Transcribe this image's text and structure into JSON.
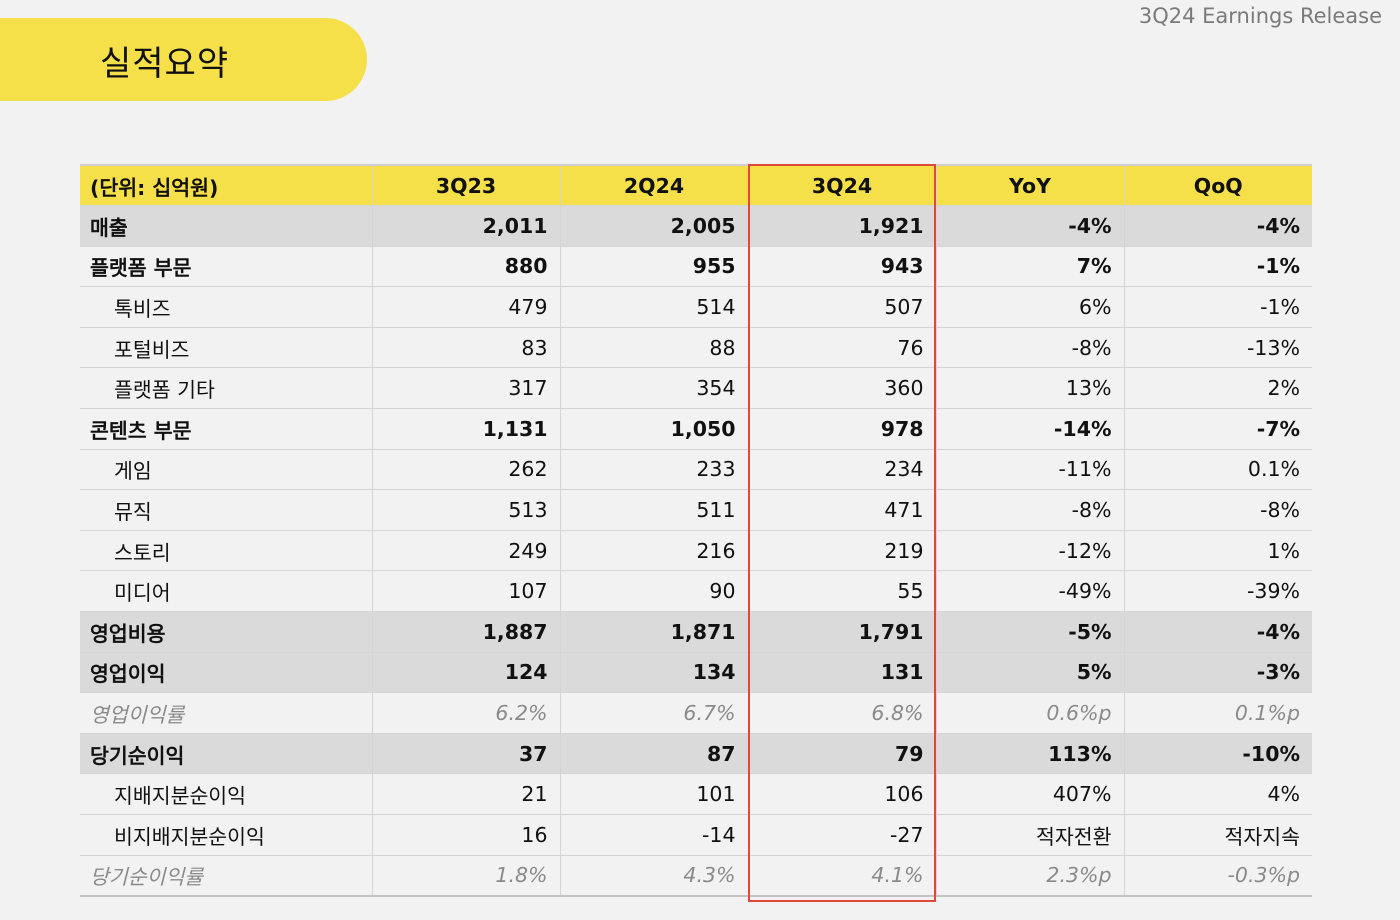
{
  "header": {
    "title": "실적요약",
    "release": "3Q24 Earnings Release",
    "accent_color": "#f5e04a",
    "highlight_color": "#e0493a"
  },
  "table": {
    "columns": [
      "(단위: 십억원)",
      "3Q23",
      "2Q24",
      "3Q24",
      "YoY",
      "QoQ"
    ],
    "highlighted_column": "3Q24",
    "rows": [
      {
        "label": "매출",
        "style": "bold shade",
        "values": [
          "2,011",
          "2,005",
          "1,921",
          "-4%",
          "-4%"
        ]
      },
      {
        "label": "플랫폼 부문",
        "style": "bold",
        "values": [
          "880",
          "955",
          "943",
          "7%",
          "-1%"
        ]
      },
      {
        "label": "톡비즈",
        "style": "sub",
        "values": [
          "479",
          "514",
          "507",
          "6%",
          "-1%"
        ]
      },
      {
        "label": "포털비즈",
        "style": "sub",
        "values": [
          "83",
          "88",
          "76",
          "-8%",
          "-13%"
        ]
      },
      {
        "label": "플랫폼 기타",
        "style": "sub",
        "values": [
          "317",
          "354",
          "360",
          "13%",
          "2%"
        ]
      },
      {
        "label": "콘텐츠 부문",
        "style": "bold",
        "values": [
          "1,131",
          "1,050",
          "978",
          "-14%",
          "-7%"
        ]
      },
      {
        "label": "게임",
        "style": "sub",
        "values": [
          "262",
          "233",
          "234",
          "-11%",
          "0.1%"
        ]
      },
      {
        "label": "뮤직",
        "style": "sub",
        "values": [
          "513",
          "511",
          "471",
          "-8%",
          "-8%"
        ]
      },
      {
        "label": "스토리",
        "style": "sub",
        "values": [
          "249",
          "216",
          "219",
          "-12%",
          "1%"
        ]
      },
      {
        "label": "미디어",
        "style": "sub",
        "values": [
          "107",
          "90",
          "55",
          "-49%",
          "-39%"
        ]
      },
      {
        "label": "영업비용",
        "style": "bold shade",
        "values": [
          "1,887",
          "1,871",
          "1,791",
          "-5%",
          "-4%"
        ]
      },
      {
        "label": "영업이익",
        "style": "bold shade",
        "values": [
          "124",
          "134",
          "131",
          "5%",
          "-3%"
        ]
      },
      {
        "label": "영업이익률",
        "style": "ital",
        "values": [
          "6.2%",
          "6.7%",
          "6.8%",
          "0.6%p",
          "0.1%p"
        ]
      },
      {
        "label": "당기순이익",
        "style": "bold shade",
        "values": [
          "37",
          "87",
          "79",
          "113%",
          "-10%"
        ]
      },
      {
        "label": "지배지분순이익",
        "style": "sub",
        "values": [
          "21",
          "101",
          "106",
          "407%",
          "4%"
        ]
      },
      {
        "label": "비지배지분순이익",
        "style": "sub",
        "values": [
          "16",
          "-14",
          "-27",
          "적자전환",
          "적자지속"
        ]
      },
      {
        "label": "당기순이익률",
        "style": "ital",
        "values": [
          "1.8%",
          "4.3%",
          "4.1%",
          "2.3%p",
          "-0.3%p"
        ]
      }
    ]
  }
}
